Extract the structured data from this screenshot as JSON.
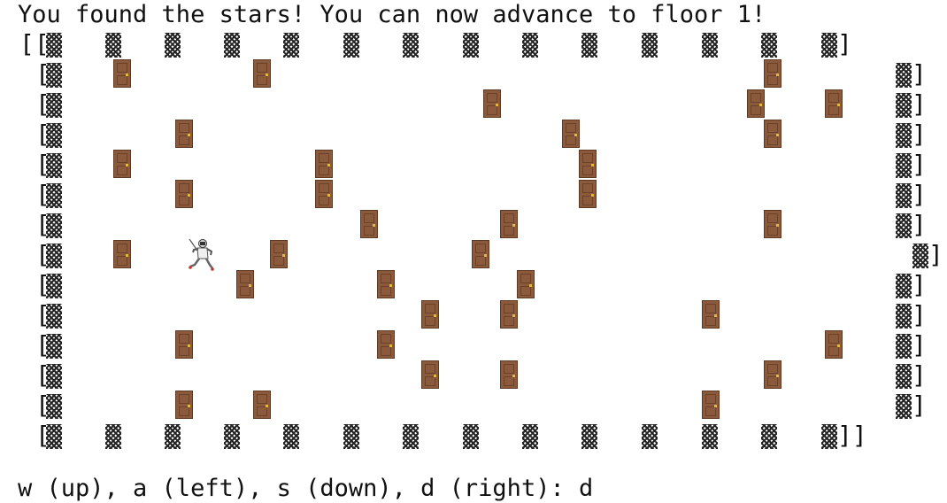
{
  "status_message": "You found the stars! You can now advance to floor 1!",
  "prompt": "w (up), a (left), s (down), d (right): d",
  "icons": {
    "wall": "checker-wall-tile-icon",
    "door": "door-icon",
    "player": "fencer-icon"
  },
  "colors": {
    "door": "#8b5a3c",
    "door_knob": "#e2b93b",
    "wall": "#000000"
  },
  "board": {
    "top_row_open": "[[",
    "top_row_close": "]",
    "row_open": "[",
    "row_close": "]",
    "bottom_row_close": "]]"
  }
}
